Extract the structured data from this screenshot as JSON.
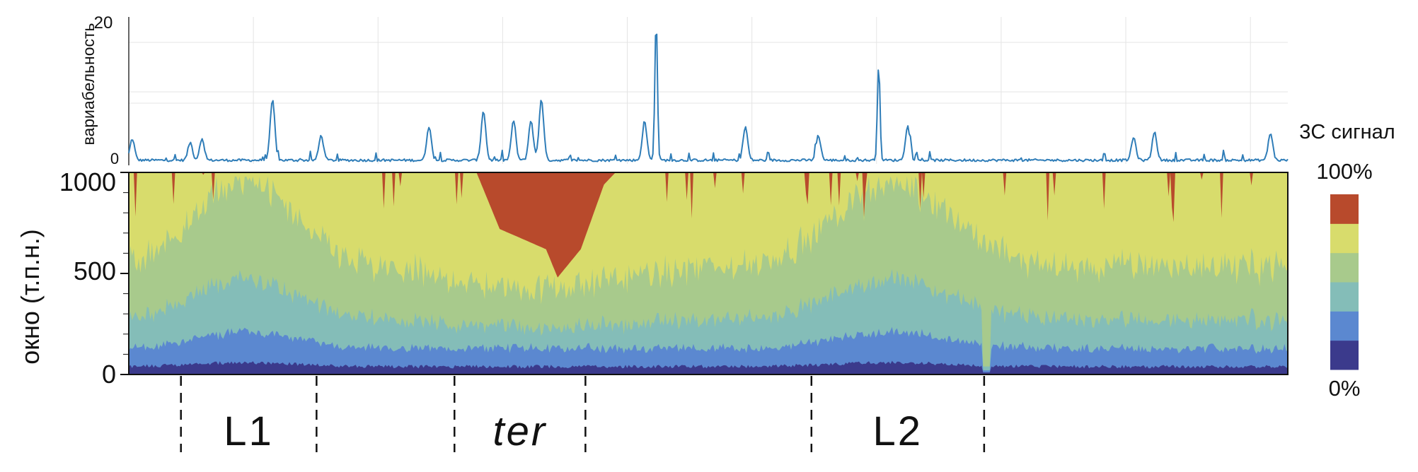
{
  "colors": {
    "line": "#2f7db8",
    "heatmap_bands": [
      "#3b3a8c",
      "#5b88d0",
      "#84bdb8",
      "#a8ca8c",
      "#d8dc6c",
      "#b84a2c"
    ]
  },
  "chart_data": [
    {
      "type": "line",
      "title": "",
      "xlabel": "",
      "ylabel": "вариабельность",
      "yticks": [
        "0",
        "20"
      ],
      "ylim": [
        0,
        20
      ],
      "grid": true,
      "peaks": [
        {
          "x": 0.003,
          "y": 3
        },
        {
          "x": 0.053,
          "y": 2.5
        },
        {
          "x": 0.063,
          "y": 3
        },
        {
          "x": 0.124,
          "y": 8.5
        },
        {
          "x": 0.166,
          "y": 3.5
        },
        {
          "x": 0.259,
          "y": 4.8
        },
        {
          "x": 0.306,
          "y": 7
        },
        {
          "x": 0.332,
          "y": 5.6
        },
        {
          "x": 0.347,
          "y": 5.6
        },
        {
          "x": 0.356,
          "y": 8.7
        },
        {
          "x": 0.445,
          "y": 5.5
        },
        {
          "x": 0.455,
          "y": 20
        },
        {
          "x": 0.532,
          "y": 4.7
        },
        {
          "x": 0.595,
          "y": 3.5
        },
        {
          "x": 0.647,
          "y": 13.5
        },
        {
          "x": 0.672,
          "y": 4.8
        },
        {
          "x": 0.867,
          "y": 3.2
        },
        {
          "x": 0.885,
          "y": 4
        },
        {
          "x": 0.985,
          "y": 3.8
        }
      ]
    },
    {
      "type": "area",
      "title": "",
      "ylabel": "окно (т.п.н.)",
      "yticks": [
        "0",
        "500",
        "1000"
      ],
      "ylim": [
        0,
        1000
      ],
      "legend": {
        "title": "3C сигнал",
        "top_label": "100%",
        "bottom_label": "0%"
      },
      "red_band_lower_boundary": [
        {
          "x": 0.0,
          "y": 1000
        },
        {
          "x": 0.3,
          "y": 1000
        },
        {
          "x": 0.32,
          "y": 720
        },
        {
          "x": 0.36,
          "y": 620
        },
        {
          "x": 0.37,
          "y": 480
        },
        {
          "x": 0.39,
          "y": 620
        },
        {
          "x": 0.41,
          "y": 940
        },
        {
          "x": 0.42,
          "y": 1000
        },
        {
          "x": 1.0,
          "y": 1000
        }
      ],
      "regions": [
        {
          "label": "L1",
          "start": 0.045,
          "end": 0.162,
          "italic": false
        },
        {
          "label": "ter",
          "start": 0.281,
          "end": 0.394,
          "italic": true
        },
        {
          "label": "L2",
          "start": 0.589,
          "end": 0.738,
          "italic": false
        }
      ]
    }
  ]
}
